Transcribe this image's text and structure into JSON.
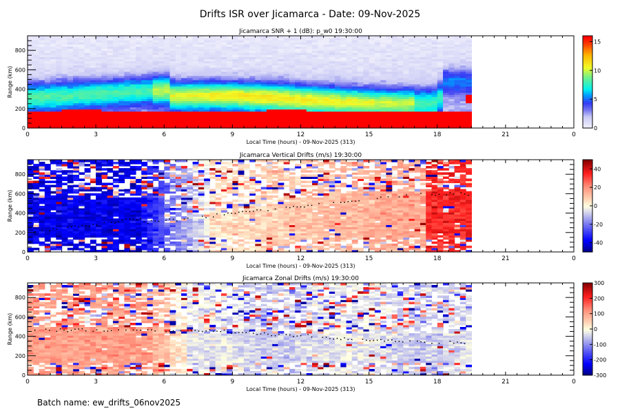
{
  "figure": {
    "title": "Drifts ISR over Jicamarca - Date: 09-Nov-2025",
    "batch_label": "Batch name: ew_drifts_06nov2025"
  },
  "chart_data": [
    {
      "type": "heatmap",
      "title": "Jicamarca SNR + 1 (dB): p_w0 19:30:00",
      "xlabel": "Local Time (hours) - 09-Nov-2025 (313)",
      "ylabel": "Range (km)",
      "x_ticks": [
        "0",
        "3",
        "6",
        "9",
        "12",
        "15",
        "18",
        "21",
        "0"
      ],
      "x_range": [
        0,
        24
      ],
      "data_x_end": 19.5,
      "y_ticks": [
        "0",
        "200",
        "400",
        "600",
        "800"
      ],
      "y_range": [
        0,
        950
      ],
      "colorbar": {
        "range": [
          0,
          16
        ],
        "ticks": [
          "0",
          "5",
          "10",
          "15"
        ],
        "colormap": "white-blue-cyan-yellow-red"
      },
      "features": {
        "saturated_layer_top_km": 180,
        "peak_layer_km": [
          250,
          450
        ],
        "peak_value_db": 11
      }
    },
    {
      "type": "heatmap",
      "title": "Jicamarca Vertical Drifts (m/s) 19:30:00",
      "xlabel": "Local Time (hours) - 09-Nov-2025 (313)",
      "ylabel": "Range (km)",
      "x_ticks": [
        "0",
        "3",
        "6",
        "9",
        "12",
        "15",
        "18",
        "21",
        "0"
      ],
      "x_range": [
        0,
        24
      ],
      "data_x_end": 19.5,
      "y_ticks": [
        "0",
        "200",
        "400",
        "600",
        "800"
      ],
      "y_range": [
        0,
        950
      ],
      "colorbar": {
        "range": [
          -50,
          50
        ],
        "ticks": [
          "-40",
          "-20",
          "0",
          "20",
          "40"
        ],
        "colormap": "blue-white-red"
      },
      "features": {
        "early_mean_ms": -40,
        "late_mean_ms": 25,
        "reversal_hour": 7.5
      }
    },
    {
      "type": "heatmap",
      "title": "Jicamarca Zonal Drifts (m/s) 19:30:00",
      "xlabel": "Local Time (hours) - 09-Nov-2025 (313)",
      "ylabel": "Range (km)",
      "x_ticks": [
        "0",
        "3",
        "6",
        "9",
        "12",
        "15",
        "18",
        "21",
        "0"
      ],
      "x_range": [
        0,
        24
      ],
      "data_x_end": 19.5,
      "y_ticks": [
        "0",
        "200",
        "400",
        "600",
        "800"
      ],
      "y_range": [
        0,
        950
      ],
      "colorbar": {
        "range": [
          -300,
          300
        ],
        "ticks": [
          "-300",
          "-200",
          "-100",
          "0",
          "100",
          "200",
          "300"
        ],
        "colormap": "blue-white-red"
      },
      "features": {
        "early_mean_ms": 100,
        "late_mean_ms": -40
      }
    }
  ]
}
